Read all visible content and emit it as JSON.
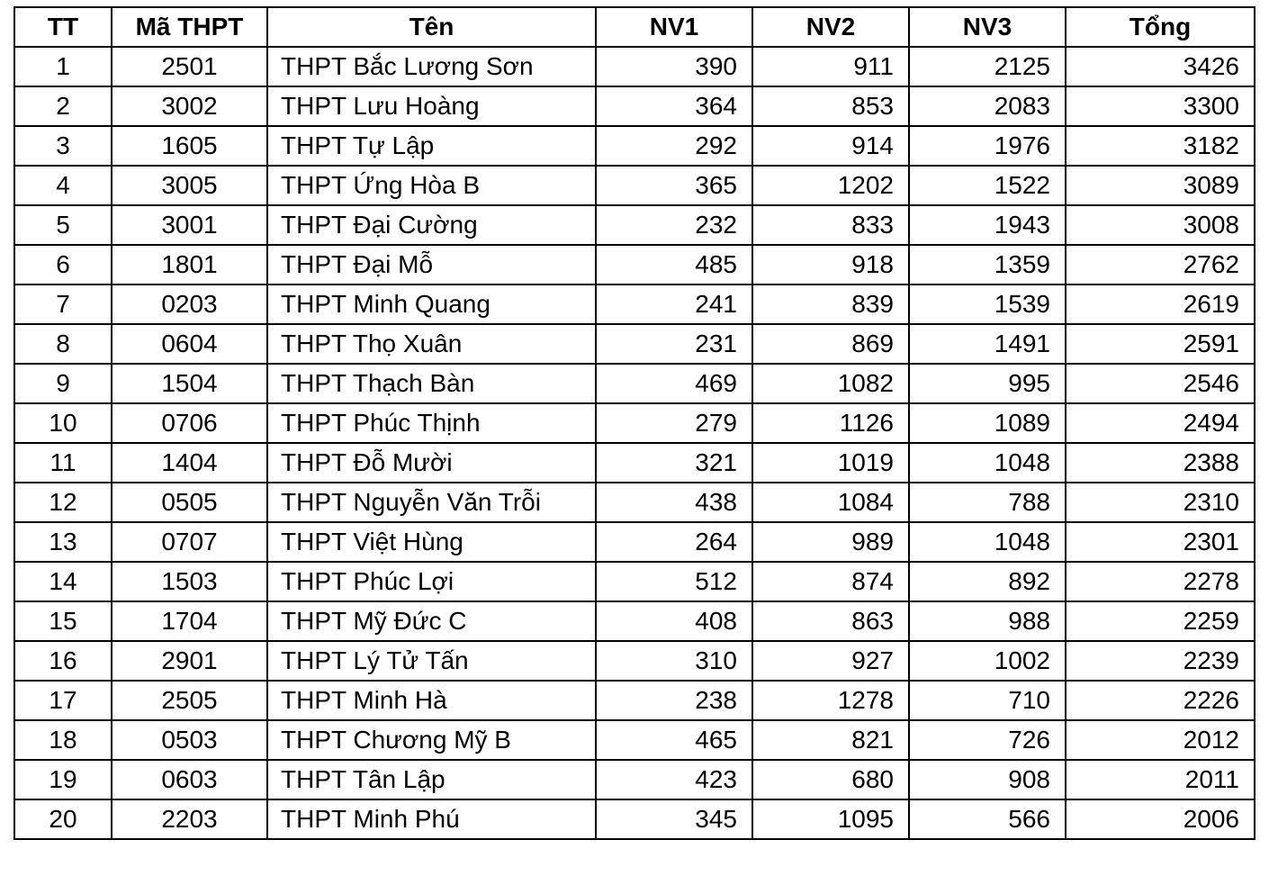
{
  "table": {
    "headers": [
      "TT",
      "Mã THPT",
      "Tên",
      "NV1",
      "NV2",
      "NV3",
      "Tổng"
    ],
    "rows": [
      [
        "1",
        "2501",
        "THPT Bắc Lương Sơn",
        "390",
        "911",
        "2125",
        "3426"
      ],
      [
        "2",
        "3002",
        "THPT Lưu Hoàng",
        "364",
        "853",
        "2083",
        "3300"
      ],
      [
        "3",
        "1605",
        "THPT Tự Lập",
        "292",
        "914",
        "1976",
        "3182"
      ],
      [
        "4",
        "3005",
        "THPT Ứng Hòa B",
        "365",
        "1202",
        "1522",
        "3089"
      ],
      [
        "5",
        "3001",
        "THPT Đại Cường",
        "232",
        "833",
        "1943",
        "3008"
      ],
      [
        "6",
        "1801",
        "THPT Đại Mỗ",
        "485",
        "918",
        "1359",
        "2762"
      ],
      [
        "7",
        "0203",
        "THPT Minh Quang",
        "241",
        "839",
        "1539",
        "2619"
      ],
      [
        "8",
        "0604",
        "THPT Thọ Xuân",
        "231",
        "869",
        "1491",
        "2591"
      ],
      [
        "9",
        "1504",
        "THPT Thạch Bàn",
        "469",
        "1082",
        "995",
        "2546"
      ],
      [
        "10",
        "0706",
        "THPT Phúc Thịnh",
        "279",
        "1126",
        "1089",
        "2494"
      ],
      [
        "11",
        "1404",
        "THPT Đỗ Mười",
        "321",
        "1019",
        "1048",
        "2388"
      ],
      [
        "12",
        "0505",
        "THPT Nguyễn Văn Trỗi",
        "438",
        "1084",
        "788",
        "2310"
      ],
      [
        "13",
        "0707",
        "THPT Việt Hùng",
        "264",
        "989",
        "1048",
        "2301"
      ],
      [
        "14",
        "1503",
        "THPT Phúc Lợi",
        "512",
        "874",
        "892",
        "2278"
      ],
      [
        "15",
        "1704",
        "THPT Mỹ Đức C",
        "408",
        "863",
        "988",
        "2259"
      ],
      [
        "16",
        "2901",
        "THPT Lý Tử Tấn",
        "310",
        "927",
        "1002",
        "2239"
      ],
      [
        "17",
        "2505",
        "THPT Minh Hà",
        "238",
        "1278",
        "710",
        "2226"
      ],
      [
        "18",
        "0503",
        "THPT Chương Mỹ B",
        "465",
        "821",
        "726",
        "2012"
      ],
      [
        "19",
        "0603",
        "THPT Tân Lập",
        "423",
        "680",
        "908",
        "2011"
      ],
      [
        "20",
        "2203",
        "THPT Minh Phú",
        "345",
        "1095",
        "566",
        "2006"
      ]
    ]
  }
}
